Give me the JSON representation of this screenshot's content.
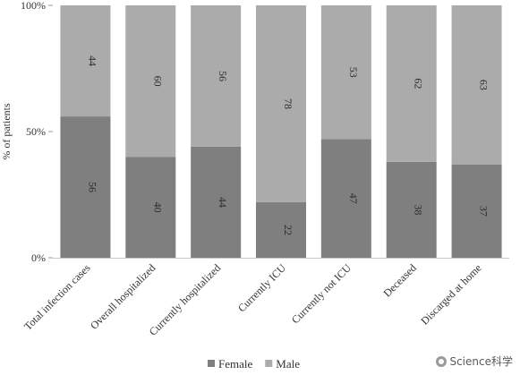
{
  "chart_data": {
    "type": "bar",
    "stacked": true,
    "percent": true,
    "categories": [
      "Total infection cases",
      "Overall hospitalized",
      "Currently hospitalized",
      "Currently ICU",
      "Currently not ICU",
      "Deceased",
      "Discarged at home"
    ],
    "series": [
      {
        "name": "Female",
        "color": "#7f7f7f",
        "values": [
          56,
          40,
          44,
          22,
          47,
          38,
          37
        ]
      },
      {
        "name": "Male",
        "color": "#ababab",
        "values": [
          44,
          60,
          56,
          78,
          53,
          62,
          63
        ]
      }
    ],
    "y_ticks": [
      "0%",
      "50%",
      "100%"
    ],
    "ylabel": "% of patients",
    "xlabel": "",
    "title": "",
    "ylim": [
      0,
      100
    ],
    "grid": false,
    "legend_placement": "bottom-center"
  },
  "watermark": {
    "text": "Science科学",
    "icon": "wechat-icon"
  }
}
